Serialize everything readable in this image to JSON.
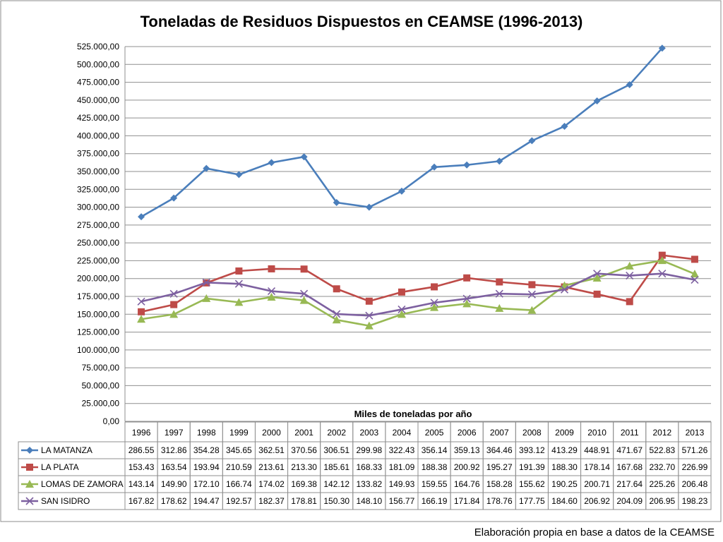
{
  "chart_data": {
    "type": "line",
    "title": "Toneladas de Residuos Dispuestos en CEAMSE (1996-2013)",
    "xlabel": "Miles de toneladas por año",
    "ylabel": "",
    "ylim": [
      0,
      525000
    ],
    "yticks": [
      "0,00",
      "25.000,00",
      "50.000,00",
      "75.000,00",
      "100.000,00",
      "125.000,00",
      "150.000,00",
      "175.000,00",
      "200.000,00",
      "225.000,00",
      "250.000,00",
      "275.000,00",
      "300.000,00",
      "325.000,00",
      "350.000,00",
      "375.000,00",
      "400.000,00",
      "425.000,00",
      "450.000,00",
      "475.000,00",
      "500.000,00",
      "525.000,00"
    ],
    "grid": true,
    "legend": "data table below chart",
    "categories": [
      "1996",
      "1997",
      "1998",
      "1999",
      "2000",
      "2001",
      "2002",
      "2003",
      "2004",
      "2005",
      "2006",
      "2007",
      "2008",
      "2009",
      "2010",
      "2011",
      "2012",
      "2013"
    ],
    "series": [
      {
        "name": "LA MATANZA",
        "color": "#4a7ebb",
        "marker": "diamond",
        "values": [
          286.55,
          312.86,
          354.28,
          345.65,
          362.51,
          370.56,
          306.51,
          299.98,
          322.43,
          356.14,
          359.13,
          364.46,
          393.12,
          413.29,
          448.91,
          471.67,
          522.83,
          571.26
        ],
        "labels": [
          "286.55",
          "312.86",
          "354.28",
          "345.65",
          "362.51",
          "370.56",
          "306.51",
          "299.98",
          "322.43",
          "356.14",
          "359.13",
          "364.46",
          "393.12",
          "413.29",
          "448.91",
          "471.67",
          "522.83",
          "571.26"
        ]
      },
      {
        "name": "LA PLATA",
        "color": "#be4b48",
        "marker": "square",
        "values": [
          153.43,
          163.54,
          193.94,
          210.59,
          213.61,
          213.3,
          185.61,
          168.33,
          181.09,
          188.38,
          200.92,
          195.27,
          191.39,
          188.3,
          178.14,
          167.68,
          232.7,
          226.99
        ],
        "labels": [
          "153.43",
          "163.54",
          "193.94",
          "210.59",
          "213.61",
          "213.30",
          "185.61",
          "168.33",
          "181.09",
          "188.38",
          "200.92",
          "195.27",
          "191.39",
          "188.30",
          "178.14",
          "167.68",
          "232.70",
          "226.99"
        ]
      },
      {
        "name": "LOMAS DE ZAMORA",
        "color": "#98b954",
        "marker": "triangle",
        "values": [
          143.14,
          149.9,
          172.1,
          166.74,
          174.02,
          169.38,
          142.12,
          133.82,
          149.93,
          159.55,
          164.76,
          158.28,
          155.62,
          190.25,
          200.71,
          217.64,
          225.26,
          206.48
        ],
        "labels": [
          "143.14",
          "149.90",
          "172.10",
          "166.74",
          "174.02",
          "169.38",
          "142.12",
          "133.82",
          "149.93",
          "159.55",
          "164.76",
          "158.28",
          "155.62",
          "190.25",
          "200.71",
          "217.64",
          "225.26",
          "206.48"
        ]
      },
      {
        "name": "SAN ISIDRO",
        "color": "#7d60a0",
        "marker": "x",
        "values": [
          167.82,
          178.62,
          194.47,
          192.57,
          182.37,
          178.81,
          150.3,
          148.1,
          156.77,
          166.19,
          171.84,
          178.76,
          177.75,
          184.6,
          206.92,
          204.09,
          206.95,
          198.23
        ],
        "labels": [
          "167.82",
          "178.62",
          "194.47",
          "192.57",
          "182.37",
          "178.81",
          "150.30",
          "148.10",
          "156.77",
          "166.19",
          "171.84",
          "178.76",
          "177.75",
          "184.60",
          "206.92",
          "204.09",
          "206.95",
          "198.23"
        ]
      }
    ]
  },
  "footer": "Elaboración propia en base a datos de la CEAMSE"
}
